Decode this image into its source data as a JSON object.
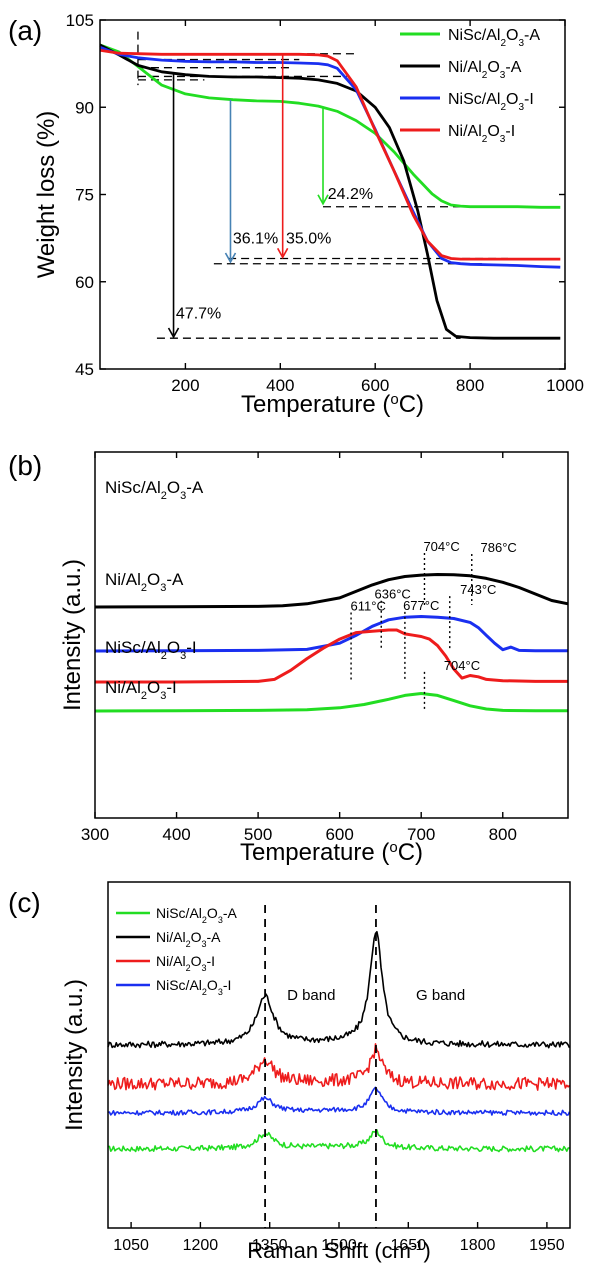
{
  "chart_data": [
    {
      "panel_label": "(a)",
      "type": "line",
      "xlabel_parts": [
        "Temperature (",
        "o",
        "C)"
      ],
      "ylabel": "Weight loss (%)",
      "xlim": [
        20,
        1000
      ],
      "ylim": [
        45,
        105
      ],
      "xticks": [
        "200",
        "400",
        "600",
        "800",
        "1000"
      ],
      "yticks": [
        "45",
        "60",
        "75",
        "90",
        "105"
      ],
      "legend_position": "top-right",
      "series": [
        {
          "name_parts": [
            "NiSc/Al",
            "2",
            "O",
            "3",
            "-A"
          ],
          "color": "#22dd22",
          "x": [
            20,
            60,
            100,
            150,
            200,
            250,
            300,
            350,
            400,
            440,
            480,
            520,
            560,
            600,
            640,
            680,
            720,
            740,
            760,
            780,
            800,
            850,
            900,
            950,
            990
          ],
          "y": [
            100.7,
            99.5,
            97.0,
            93.8,
            92.3,
            91.6,
            91.3,
            91.1,
            91.0,
            90.7,
            90.2,
            89.3,
            87.7,
            85.5,
            82.3,
            78.5,
            75.1,
            73.9,
            73.2,
            73.0,
            72.9,
            72.9,
            72.9,
            72.8,
            72.8
          ]
        },
        {
          "name_parts": [
            "Ni/Al",
            "2",
            "O",
            "3",
            "-A"
          ],
          "color": "#000000",
          "x": [
            20,
            60,
            100,
            150,
            200,
            250,
            300,
            350,
            400,
            440,
            480,
            520,
            560,
            600,
            630,
            660,
            690,
            710,
            730,
            750,
            770,
            800,
            850,
            900,
            950,
            990
          ],
          "y": [
            100.7,
            99.0,
            97.2,
            96.1,
            95.6,
            95.3,
            95.2,
            95.2,
            95.1,
            95.0,
            94.7,
            94.1,
            92.8,
            90.0,
            86.5,
            80.8,
            72.1,
            64.8,
            56.8,
            51.8,
            50.6,
            50.4,
            50.3,
            50.3,
            50.3,
            50.3
          ]
        },
        {
          "name_parts": [
            "NiSc/Al",
            "2",
            "O",
            "3",
            "-I"
          ],
          "color": "#1a2ff0",
          "x": [
            20,
            60,
            100,
            150,
            200,
            250,
            300,
            350,
            400,
            440,
            480,
            500,
            520,
            560,
            600,
            640,
            680,
            710,
            740,
            760,
            780,
            800,
            850,
            900,
            950,
            990
          ],
          "y": [
            100.3,
            99.1,
            98.5,
            98.1,
            97.9,
            97.8,
            97.8,
            97.7,
            97.7,
            97.6,
            97.5,
            97.3,
            96.7,
            93.0,
            86.2,
            79.0,
            72.0,
            67.0,
            64.0,
            63.3,
            63.1,
            63.0,
            62.9,
            62.8,
            62.6,
            62.5
          ]
        },
        {
          "name_parts": [
            "Ni/Al",
            "2",
            "O",
            "3",
            "-I"
          ],
          "color": "#ee1c1c",
          "x": [
            20,
            60,
            100,
            150,
            200,
            250,
            300,
            350,
            400,
            440,
            480,
            500,
            520,
            560,
            600,
            640,
            680,
            710,
            740,
            760,
            780,
            800,
            850,
            900,
            950,
            990
          ],
          "y": [
            99.8,
            99.3,
            99.2,
            99.1,
            99.1,
            99.1,
            99.1,
            99.1,
            99.1,
            99.1,
            99.0,
            98.8,
            98.0,
            93.5,
            86.0,
            79.0,
            71.5,
            67.0,
            64.5,
            64.0,
            63.9,
            63.9,
            63.9,
            63.9,
            63.9,
            63.9
          ]
        }
      ],
      "annotations": [
        {
          "text": "24.2%",
          "x": 500,
          "y": 74.2
        },
        {
          "text": "36.1%",
          "x": 300,
          "y": 66.6
        },
        {
          "text": "35.0%",
          "x": 412,
          "y": 66.6
        },
        {
          "text": "47.7%",
          "x": 180,
          "y": 53.7
        }
      ],
      "dashed_guides": [
        {
          "x1": 100,
          "y1": 99.2,
          "x2": 560,
          "y2": 99.2
        },
        {
          "x1": 100,
          "y1": 98.2,
          "x2": 440,
          "y2": 98.2
        },
        {
          "x1": 100,
          "y1": 96.8,
          "x2": 420,
          "y2": 96.8
        },
        {
          "x1": 100,
          "y1": 95.3,
          "x2": 540,
          "y2": 95.3
        },
        {
          "x1": 100,
          "y1": 94.7,
          "x2": 240,
          "y2": 94.7
        },
        {
          "x1": 490,
          "y1": 72.9,
          "x2": 860,
          "y2": 72.9
        },
        {
          "x1": 290,
          "y1": 64.0,
          "x2": 880,
          "y2": 64.0
        },
        {
          "x1": 260,
          "y1": 63.1,
          "x2": 830,
          "y2": 63.1
        },
        {
          "x1": 140,
          "y1": 50.3,
          "x2": 780,
          "y2": 50.3
        },
        {
          "x1": 100,
          "y1": 103.0,
          "x2": 100,
          "y2": 93.8
        }
      ],
      "arrows": [
        {
          "color": "#22dd22",
          "x": 490,
          "y_from": 89.8,
          "y_to": 73.4
        },
        {
          "color": "#4682b4",
          "x": 295,
          "y_from": 91.3,
          "y_to": 63.4
        },
        {
          "color": "#ee1c1c",
          "x": 405,
          "y_from": 99.1,
          "y_to": 64.2
        },
        {
          "color": "#000000",
          "x": 175,
          "y_from": 95.7,
          "y_to": 50.5
        }
      ]
    },
    {
      "panel_label": "(b)",
      "type": "line",
      "xlabel_parts": [
        "Temperature (",
        "o",
        "C)"
      ],
      "ylabel": "Intensity (a.u.)",
      "xlim": [
        300,
        880
      ],
      "xticks": [
        "300",
        "400",
        "500",
        "600",
        "700",
        "800"
      ],
      "series": [
        {
          "name_parts": [
            "NiSc/Al",
            "2",
            "O",
            "3",
            "-A"
          ],
          "color": "#22dd22",
          "offset": 6.6,
          "x": [
            300,
            400,
            500,
            560,
            600,
            630,
            660,
            680,
            700,
            720,
            740,
            760,
            780,
            800,
            840,
            880
          ],
          "y": [
            0,
            0.02,
            0.05,
            0.1,
            0.25,
            0.5,
            0.9,
            1.2,
            1.35,
            1.2,
            0.8,
            0.4,
            0.15,
            0.05,
            0.02,
            0.02
          ]
        },
        {
          "name_parts": [
            "Ni/Al",
            "2",
            "O",
            "3",
            "-A"
          ],
          "color": "#000000",
          "offset": 4.2,
          "x": [
            300,
            400,
            500,
            530,
            560,
            600,
            620,
            640,
            660,
            680,
            700,
            720,
            740,
            760,
            780,
            800,
            820,
            840,
            860,
            880
          ],
          "y": [
            0,
            0.02,
            0.05,
            0.1,
            0.25,
            0.7,
            1.2,
            1.7,
            2.1,
            2.35,
            2.45,
            2.5,
            2.48,
            2.4,
            2.2,
            1.9,
            1.5,
            1.0,
            0.5,
            0.25
          ]
        },
        {
          "name_parts": [
            "NiSc/Al",
            "2",
            "O",
            "3",
            "-I"
          ],
          "color": "#1a2ff0",
          "offset": 2.3,
          "x": [
            300,
            400,
            500,
            560,
            600,
            620,
            640,
            660,
            680,
            700,
            720,
            740,
            760,
            770,
            780,
            790,
            800,
            810,
            820,
            840,
            880
          ],
          "y": [
            0,
            0.02,
            0.05,
            0.12,
            0.6,
            1.2,
            1.9,
            2.4,
            2.6,
            2.65,
            2.6,
            2.5,
            2.2,
            1.8,
            1.2,
            0.6,
            0.1,
            0.3,
            0.05,
            0.02,
            0.02
          ]
        },
        {
          "name_parts": [
            "Ni/Al",
            "2",
            "O",
            "3",
            "-I"
          ],
          "color": "#ee1c1c",
          "offset": 0,
          "x": [
            300,
            400,
            500,
            520,
            540,
            560,
            580,
            600,
            620,
            640,
            660,
            670,
            680,
            690,
            700,
            710,
            720,
            730,
            740,
            750,
            760,
            770,
            780,
            800,
            840,
            880
          ],
          "y": [
            0,
            0,
            0.05,
            0.2,
            0.9,
            1.8,
            2.6,
            3.3,
            3.8,
            3.9,
            4.0,
            4.0,
            3.7,
            3.6,
            3.5,
            3.3,
            2.8,
            2.0,
            1.0,
            0.3,
            0.5,
            0.4,
            0.2,
            0.1,
            0.05,
            0.05
          ]
        }
      ],
      "peak_markers": [
        {
          "text": "704°C",
          "x": 704,
          "series": 0,
          "text_x": 750
        },
        {
          "text": "704°C",
          "x": 704,
          "series": 1,
          "text_x": 725
        },
        {
          "text": "786°C",
          "x": 762,
          "series": 1,
          "text_x": 795
        },
        {
          "text": "636°C",
          "x": 651,
          "series": 2,
          "text_x": 665
        },
        {
          "text": "743°C",
          "x": 735,
          "series": 2,
          "text_x": 770
        },
        {
          "text": "611°C",
          "x": 614,
          "series": 3,
          "text_x": 635
        },
        {
          "text": "677°C",
          "x": 680,
          "series": 3,
          "text_x": 700
        }
      ]
    },
    {
      "panel_label": "(c)",
      "type": "line",
      "xlabel_parts": [
        "Raman Shift (cm",
        "-1",
        ")"
      ],
      "ylabel": "Intensity (a.u.)",
      "xlim": [
        1000,
        2000
      ],
      "xticks": [
        "1050",
        "1200",
        "1350",
        "1500",
        "1650",
        "1800",
        "1950"
      ],
      "band_labels": [
        {
          "text": "D  band",
          "x": 1440
        },
        {
          "text": "G  band",
          "x": 1720
        }
      ],
      "band_positions": [
        1340,
        1580
      ],
      "series": [
        {
          "name_parts": [
            "NiSc/Al",
            "2",
            "O",
            "3",
            "-A"
          ],
          "color": "#22dd22",
          "offset": 0,
          "d_height": 1.8,
          "g_height": 2.0,
          "noise": 0.35
        },
        {
          "name_parts": [
            "Ni/Al",
            "2",
            "O",
            "3",
            "-A"
          ],
          "color": "#000000",
          "offset": 8.0,
          "d_height": 6.0,
          "g_height": 14.0,
          "noise": 0.4
        },
        {
          "name_parts": [
            "Ni/Al",
            "2",
            "O",
            "3",
            "-I"
          ],
          "color": "#ee1c1c",
          "offset": 4.6,
          "d_height": 3.0,
          "g_height": 4.0,
          "noise": 0.8
        },
        {
          "name_parts": [
            "NiSc/Al",
            "2",
            "O",
            "3",
            "-I"
          ],
          "color": "#1a2ff0",
          "offset": 2.4,
          "d_height": 1.7,
          "g_height": 2.8,
          "noise": 0.3
        }
      ]
    }
  ]
}
